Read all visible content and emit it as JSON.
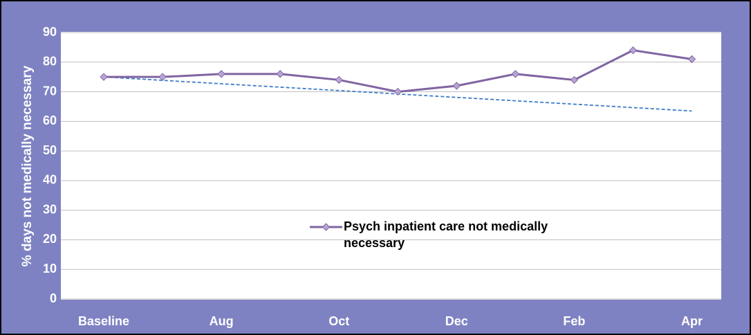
{
  "chart_data": {
    "type": "line",
    "y_axis_label": "% days not medically necessary",
    "categories": [
      "Baseline",
      null,
      "Aug",
      null,
      "Oct",
      null,
      "Dec",
      null,
      "Feb",
      null,
      "Apr"
    ],
    "series": [
      {
        "name": "Psych inpatient care not medically necessary",
        "color": "#8064a2",
        "marker_color": "#b7a6d3",
        "values": [
          75,
          75,
          76,
          76,
          74,
          70,
          72,
          76,
          74,
          84,
          81
        ]
      }
    ],
    "trend_line": {
      "start": 75,
      "end": 63.5,
      "color": "#3d7cc9"
    },
    "ylim": [
      0,
      90
    ],
    "yticks": [
      0,
      10,
      20,
      30,
      40,
      50,
      60,
      70,
      80,
      90
    ],
    "grid": true,
    "legend_position": "center"
  }
}
